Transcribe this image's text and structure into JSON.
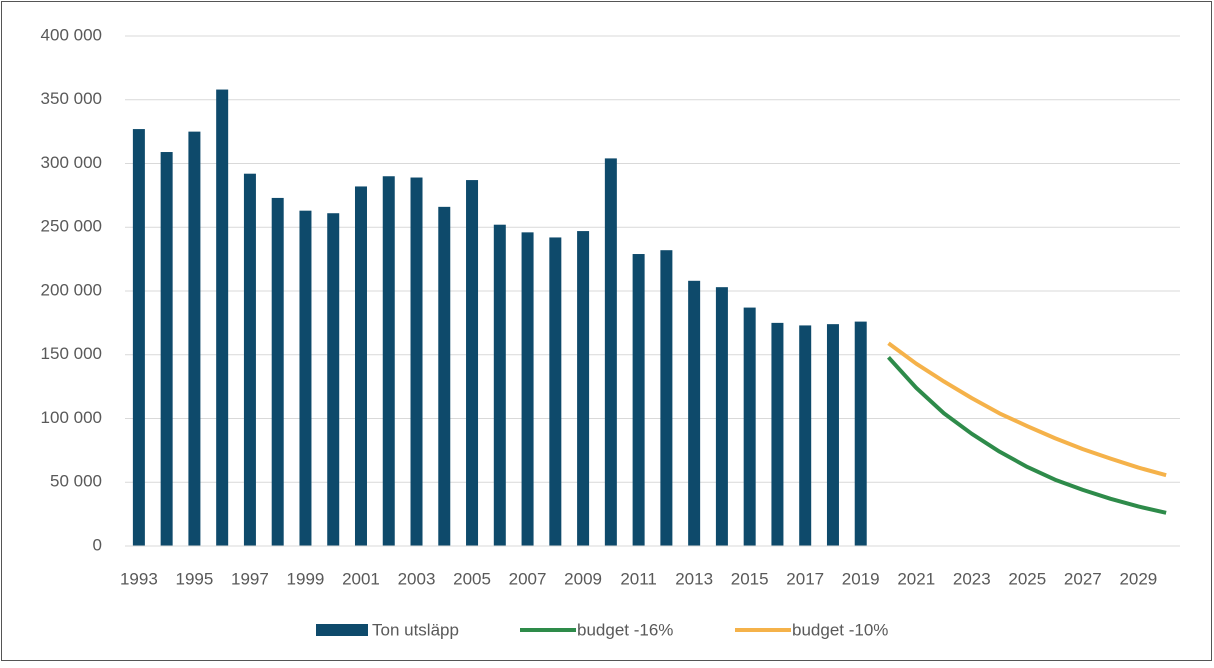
{
  "chart_data": {
    "type": "bar",
    "categories": [
      "1993",
      null,
      "1995",
      null,
      "1997",
      null,
      "1999",
      null,
      "2001",
      null,
      "2003",
      null,
      "2005",
      null,
      "2007",
      null,
      "2009",
      null,
      "2011",
      null,
      "2013",
      null,
      "2015",
      null,
      "2017",
      null,
      "2019",
      null,
      "2021",
      null,
      "2023",
      null,
      "2025",
      null,
      "2027",
      null,
      "2029",
      null
    ],
    "series": [
      {
        "name": "Ton utsläpp",
        "type": "bar",
        "color": "#0e4a6b",
        "values": [
          327000,
          309000,
          325000,
          358000,
          292000,
          273000,
          263000,
          261000,
          282000,
          290000,
          289000,
          266000,
          287000,
          252000,
          246000,
          242000,
          247000,
          304000,
          229000,
          232000,
          208000,
          203000,
          187000,
          175000,
          173000,
          174000,
          176000,
          null,
          null,
          null,
          null,
          null,
          null,
          null,
          null,
          null,
          null,
          null
        ]
      },
      {
        "name": "budget -16%",
        "type": "line",
        "color": "#2e8b4a",
        "values": [
          null,
          null,
          null,
          null,
          null,
          null,
          null,
          null,
          null,
          null,
          null,
          null,
          null,
          null,
          null,
          null,
          null,
          null,
          null,
          null,
          null,
          null,
          null,
          null,
          null,
          null,
          null,
          148000,
          124000,
          104000,
          88000,
          74000,
          62000,
          52000,
          44000,
          37000,
          31000,
          26000
        ]
      },
      {
        "name": "budget -10%",
        "type": "line",
        "color": "#f5b24a",
        "values": [
          null,
          null,
          null,
          null,
          null,
          null,
          null,
          null,
          null,
          null,
          null,
          null,
          null,
          null,
          null,
          null,
          null,
          null,
          null,
          null,
          null,
          null,
          null,
          null,
          null,
          null,
          null,
          159000,
          143000,
          129000,
          116000,
          104000,
          94000,
          84500,
          76000,
          68500,
          61500,
          55500
        ]
      }
    ],
    "ylim": [
      0,
      400000
    ],
    "yticks": [
      0,
      {
        "value": 50000,
        "label": "50 000"
      },
      {
        "value": 100000,
        "label": "100 000"
      },
      {
        "value": 150000,
        "label": "150 000"
      },
      {
        "value": 200000,
        "label": "200 000"
      },
      {
        "value": 250000,
        "label": "250 000"
      },
      {
        "value": 300000,
        "label": "300 000"
      },
      {
        "value": 350000,
        "label": "350 000"
      },
      {
        "value": 400000,
        "label": "400 000"
      }
    ],
    "grid": true,
    "legend": "bottom"
  }
}
